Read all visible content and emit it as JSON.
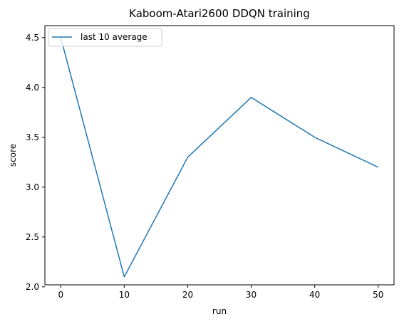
{
  "chart_data": {
    "type": "line",
    "title": "Kaboom-Atari2600 DDQN training",
    "xlabel": "run",
    "ylabel": "score",
    "x": [
      0,
      10,
      20,
      30,
      40,
      50
    ],
    "series": [
      {
        "name": "last 10 average",
        "values": [
          4.5,
          2.1,
          3.3,
          3.9,
          3.5,
          3.2
        ],
        "color": "#1f77b4"
      }
    ],
    "xticks": [
      "0",
      "10",
      "20",
      "30",
      "40",
      "50"
    ],
    "yticks": [
      "2.0",
      "2.5",
      "3.0",
      "3.5",
      "4.0",
      "4.5"
    ],
    "xlim": [
      -2.5,
      52.5
    ],
    "ylim": [
      2.02,
      4.62
    ],
    "grid": false,
    "legend_position": "upper-left"
  }
}
